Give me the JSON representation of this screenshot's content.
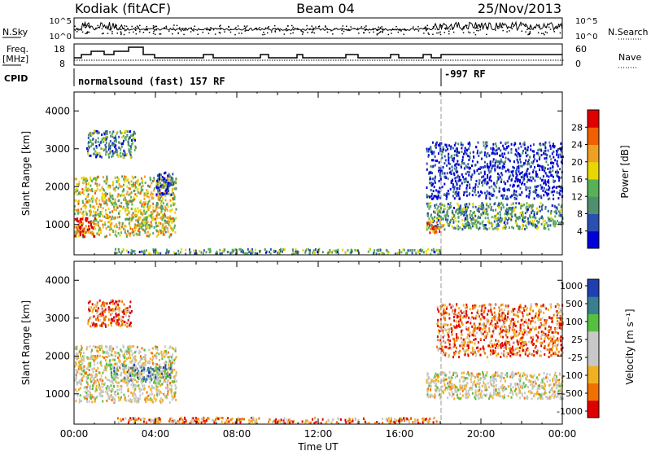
{
  "header": {
    "station": "Kodiak (fitACF)",
    "beam": "Beam 04",
    "date": "25/Nov/2013"
  },
  "top_panels": {
    "nsky_label": "N.Sky",
    "nsky_ticks": [
      "10^5",
      "10^0"
    ],
    "nsearch_label": "N.Search",
    "nsearch_ticks": [
      "10^5",
      "10^0"
    ],
    "freq_label_1": "Freq.",
    "freq_label_2": "[MHz]",
    "freq_ticks": [
      "18",
      "8"
    ],
    "nave_label": "Nave",
    "nave_ticks": [
      "60",
      "0"
    ],
    "cpid_label": "CPID",
    "cpid_text_1": "normalsound (fast) 157 RF",
    "cpid_text_2": "-997 RF"
  },
  "colors": {
    "power": [
      "#0000d8",
      "#2a4fb0",
      "#4f8f6f",
      "#58b058",
      "#e6d800",
      "#f0a020",
      "#f06000",
      "#e00000"
    ],
    "velocity": [
      "#e00000",
      "#f07000",
      "#f0b020",
      "#c8c8c8",
      "#c8c8c8",
      "#55c040",
      "#3a7f8f",
      "#2040b0"
    ]
  },
  "chart_data": [
    {
      "type": "heatmap",
      "name": "power",
      "xlabel": "",
      "ylabel": "Slant Range [km]",
      "xlim": [
        0,
        24
      ],
      "ylim": [
        200,
        4500
      ],
      "yticks": [
        "1000",
        "2000",
        "3000",
        "4000"
      ],
      "colorbar": {
        "label": "Power [dB]",
        "ticks": [
          "4",
          "8",
          "12",
          "16",
          "20",
          "24",
          "28"
        ],
        "range": [
          0,
          32
        ]
      },
      "regions": [
        {
          "t0": 0.0,
          "t1": 5.0,
          "r0": 700,
          "r1": 2300,
          "level": 0.55
        },
        {
          "t0": 0.0,
          "t1": 1.0,
          "r0": 700,
          "r1": 1200,
          "level": 0.95
        },
        {
          "t0": 0.6,
          "t1": 3.0,
          "r0": 2800,
          "r1": 3500,
          "level": 0.3
        },
        {
          "t0": 4.0,
          "t1": 4.9,
          "r0": 1800,
          "r1": 2400,
          "level": 0.1
        },
        {
          "t0": 2.0,
          "t1": 18.0,
          "r0": 250,
          "r1": 380,
          "level": 0.35
        },
        {
          "t0": 17.3,
          "t1": 24.0,
          "r0": 900,
          "r1": 1600,
          "level": 0.35
        },
        {
          "t0": 17.3,
          "t1": 18.1,
          "r0": 800,
          "r1": 1100,
          "level": 0.75
        },
        {
          "t0": 17.3,
          "t1": 24.0,
          "r0": 1700,
          "r1": 3200,
          "level": 0.1
        }
      ]
    },
    {
      "type": "heatmap",
      "name": "velocity",
      "xlabel": "Time UT",
      "ylabel": "Slant Range [km]",
      "xlim": [
        0,
        24
      ],
      "ylim": [
        200,
        4500
      ],
      "xticks": [
        "00:00",
        "04:00",
        "08:00",
        "12:00",
        "16:00",
        "20:00",
        "00:00"
      ],
      "yticks": [
        "1000",
        "2000",
        "3000",
        "4000"
      ],
      "colorbar": {
        "label": "Velocity [m s⁻¹]",
        "ticks": [
          "1000",
          "500",
          "100",
          "25",
          "-25",
          "-100",
          "-500",
          "-1000"
        ]
      },
      "regions": [
        {
          "t0": 0.0,
          "t1": 5.0,
          "r0": 800,
          "r1": 2300,
          "level": 0.45
        },
        {
          "t0": 1.8,
          "t1": 4.8,
          "r0": 1350,
          "r1": 1800,
          "level": 0.7
        },
        {
          "t0": 0.6,
          "t1": 2.8,
          "r0": 2800,
          "r1": 3500,
          "level": 0.2
        },
        {
          "t0": 2.0,
          "t1": 18.0,
          "r0": 250,
          "r1": 400,
          "level": 0.25
        },
        {
          "t0": 17.3,
          "t1": 24.0,
          "r0": 900,
          "r1": 1600,
          "level": 0.45
        },
        {
          "t0": 17.8,
          "t1": 24.0,
          "r0": 2000,
          "r1": 3400,
          "level": 0.2
        }
      ]
    }
  ]
}
